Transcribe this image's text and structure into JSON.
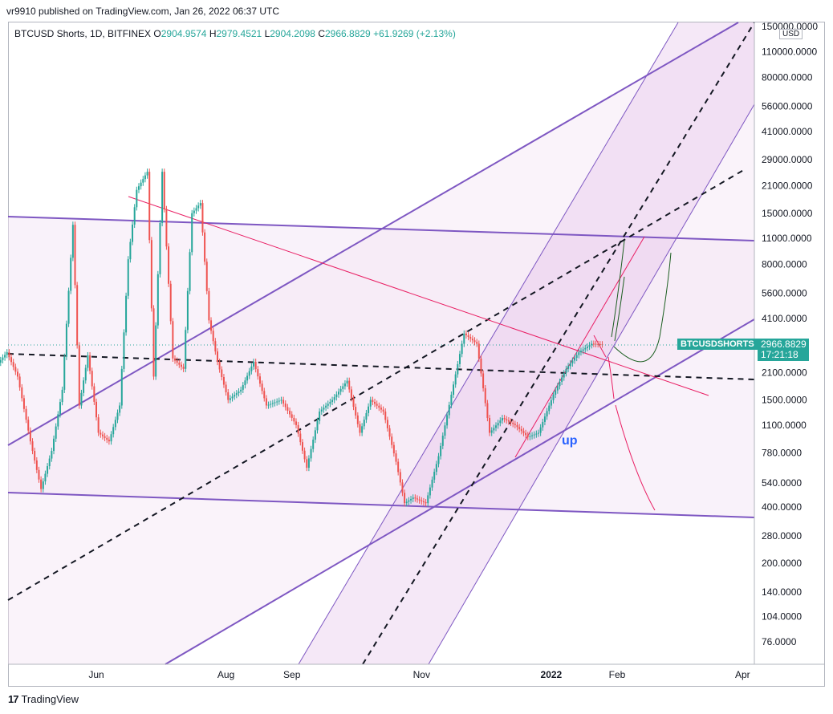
{
  "header": {
    "published": "vr9910 published on TradingView.com, Jan 26, 2022 06:37 UTC"
  },
  "legend": {
    "title": "BTCUSD Shorts, 1D, BITFINEX",
    "o_label": "O",
    "o_value": "2904.9574",
    "h_label": "H",
    "h_value": "2979.4521",
    "l_label": "L",
    "l_value": "2904.2098",
    "c_label": "C",
    "c_value": "2966.8829",
    "change": "+61.9269 (+2.13%)"
  },
  "price_axis": {
    "currency": "USD",
    "current_price": "2966.8829",
    "countdown": "17:21:18",
    "symbol_tag": "BTCUSDSHORTS"
  },
  "annotation": {
    "text": "up"
  },
  "footer": {
    "brand": "TradingView"
  },
  "colors": {
    "up_candle": "#26a69a",
    "down_candle": "#ef5350",
    "channel_line": "#7e57c2",
    "channel_fill": "#f3e5f5",
    "trend_red": "#e91e63",
    "arrow_green": "#1b5e20",
    "label_blue": "#2962ff"
  },
  "chart_data": {
    "type": "candlestick",
    "title": "BTCUSD Shorts, 1D, BITFINEX",
    "y_scale": "log",
    "y_ticks": [
      "150000.0000",
      "110000.0000",
      "80000.0000",
      "56000.0000",
      "41000.0000",
      "29000.0000",
      "21000.0000",
      "15000.0000",
      "11000.0000",
      "8000.0000",
      "5600.0000",
      "4100.0000",
      "2100.0000",
      "1500.0000",
      "1100.0000",
      "780.0000",
      "540.0000",
      "400.0000",
      "280.0000",
      "200.0000",
      "140.0000",
      "104.0000",
      "76.0000"
    ],
    "x_ticks": [
      "Jun",
      "Aug",
      "Sep",
      "Nov",
      "2022",
      "Feb",
      "Apr"
    ],
    "series_close": [
      {
        "date": "2021-04-15",
        "close": 2300
      },
      {
        "date": "2021-04-20",
        "close": 2700
      },
      {
        "date": "2021-04-25",
        "close": 2000
      },
      {
        "date": "2021-05-01",
        "close": 900
      },
      {
        "date": "2021-05-06",
        "close": 500
      },
      {
        "date": "2021-05-11",
        "close": 800
      },
      {
        "date": "2021-05-16",
        "close": 1700
      },
      {
        "date": "2021-05-21",
        "close": 13000
      },
      {
        "date": "2021-05-24",
        "close": 1400
      },
      {
        "date": "2021-05-28",
        "close": 2600
      },
      {
        "date": "2021-06-02",
        "close": 1000
      },
      {
        "date": "2021-06-07",
        "close": 900
      },
      {
        "date": "2021-06-12",
        "close": 1400
      },
      {
        "date": "2021-06-16",
        "close": 8500
      },
      {
        "date": "2021-06-20",
        "close": 20000
      },
      {
        "date": "2021-06-25",
        "close": 25000
      },
      {
        "date": "2021-06-28",
        "close": 2000
      },
      {
        "date": "2021-07-02",
        "close": 25000
      },
      {
        "date": "2021-07-07",
        "close": 2500
      },
      {
        "date": "2021-07-12",
        "close": 2200
      },
      {
        "date": "2021-07-16",
        "close": 15000
      },
      {
        "date": "2021-07-20",
        "close": 17000
      },
      {
        "date": "2021-07-24",
        "close": 4000
      },
      {
        "date": "2021-07-28",
        "close": 2400
      },
      {
        "date": "2021-08-02",
        "close": 1500
      },
      {
        "date": "2021-08-08",
        "close": 1700
      },
      {
        "date": "2021-08-14",
        "close": 2400
      },
      {
        "date": "2021-08-20",
        "close": 1400
      },
      {
        "date": "2021-08-27",
        "close": 1500
      },
      {
        "date": "2021-09-03",
        "close": 1100
      },
      {
        "date": "2021-09-08",
        "close": 650
      },
      {
        "date": "2021-09-14",
        "close": 1300
      },
      {
        "date": "2021-09-20",
        "close": 1500
      },
      {
        "date": "2021-09-27",
        "close": 1900
      },
      {
        "date": "2021-10-03",
        "close": 1000
      },
      {
        "date": "2021-10-08",
        "close": 1500
      },
      {
        "date": "2021-10-14",
        "close": 1300
      },
      {
        "date": "2021-10-20",
        "close": 700
      },
      {
        "date": "2021-10-24",
        "close": 420
      },
      {
        "date": "2021-10-28",
        "close": 450
      },
      {
        "date": "2021-11-03",
        "close": 420
      },
      {
        "date": "2021-11-09",
        "close": 750
      },
      {
        "date": "2021-11-15",
        "close": 1600
      },
      {
        "date": "2021-11-21",
        "close": 3400
      },
      {
        "date": "2021-11-27",
        "close": 3000
      },
      {
        "date": "2021-12-03",
        "close": 1000
      },
      {
        "date": "2021-12-09",
        "close": 1200
      },
      {
        "date": "2021-12-15",
        "close": 1100
      },
      {
        "date": "2021-12-21",
        "close": 950
      },
      {
        "date": "2021-12-26",
        "close": 1000
      },
      {
        "date": "2022-01-02",
        "close": 1600
      },
      {
        "date": "2022-01-08",
        "close": 2200
      },
      {
        "date": "2022-01-14",
        "close": 2700
      },
      {
        "date": "2022-01-20",
        "close": 3000
      },
      {
        "date": "2022-01-26",
        "close": 2966.8829
      }
    ],
    "current": {
      "open": 2904.9574,
      "high": 2979.4521,
      "low": 2904.2098,
      "close": 2966.8829
    }
  }
}
